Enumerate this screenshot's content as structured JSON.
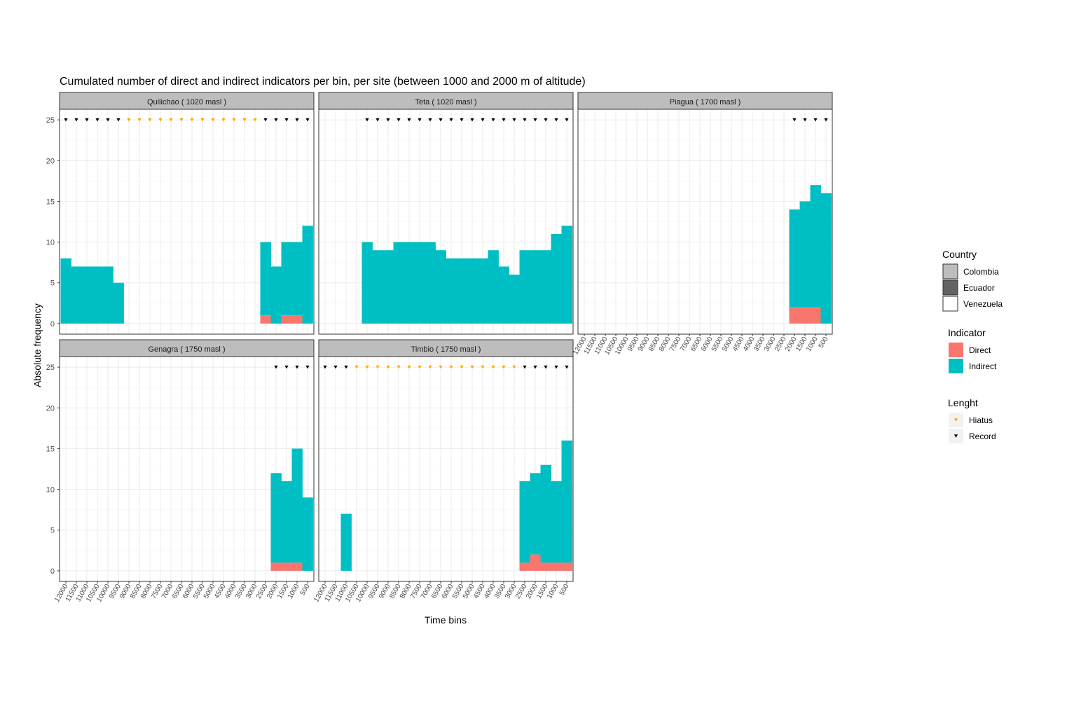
{
  "chart_data": {
    "type": "bar",
    "title": "Cumulated number of direct and indirect indicators per bin, per site (between 1000 and 2000 m of altitude)",
    "xlabel": "Time bins",
    "ylabel": "Absolute frequency",
    "ylim": [
      -1.3,
      26.3
    ],
    "yticks": [
      "0",
      "5",
      "10",
      "15",
      "20",
      "25"
    ],
    "categories": [
      "12000",
      "11500",
      "11000",
      "10500",
      "10000",
      "9500",
      "9000",
      "8500",
      "8000",
      "7500",
      "7000",
      "6500",
      "6000",
      "5500",
      "5000",
      "4500",
      "4000",
      "3500",
      "3000",
      "2500",
      "2000",
      "1500",
      "1000",
      "500"
    ],
    "grid": true,
    "legend_position": "right",
    "marker_level": 25,
    "colors": {
      "Direct": "#F8766D",
      "Indirect": "#00BFC4",
      "Hiatus": "#FFA500",
      "Record": "#000000",
      "strip": "#BDBDBD",
      "grid_major": "#EBEBEB",
      "grid_minor": "#F5F5F5"
    },
    "panels": [
      {
        "label": "Quilichao ( 1020 masl )",
        "country": "Colombia",
        "show_x_ticks": false,
        "direct": [
          0,
          0,
          0,
          0,
          0,
          0,
          0,
          0,
          0,
          0,
          0,
          0,
          0,
          0,
          0,
          0,
          0,
          0,
          0,
          1,
          0,
          1,
          1,
          0
        ],
        "indirect": [
          8,
          7,
          7,
          7,
          7,
          5,
          0,
          0,
          0,
          0,
          0,
          0,
          0,
          0,
          0,
          0,
          0,
          0,
          0,
          9,
          7,
          9,
          9,
          12
        ],
        "hiatus": [
          "9000",
          "8500",
          "8000",
          "7500",
          "7000",
          "6500",
          "6000",
          "5500",
          "5000",
          "4500",
          "4000",
          "3500",
          "3000"
        ],
        "record": [
          "12000",
          "11500",
          "11000",
          "10500",
          "10000",
          "9500",
          "2500",
          "2000",
          "1500",
          "1000",
          "500"
        ]
      },
      {
        "label": "Teta ( 1020 masl )",
        "country": "Colombia",
        "show_x_ticks": false,
        "direct": [
          0,
          0,
          0,
          0,
          0,
          0,
          0,
          0,
          0,
          0,
          0,
          0,
          0,
          0,
          0,
          0,
          0,
          0,
          0,
          0,
          0,
          0,
          0,
          0
        ],
        "indirect": [
          0,
          0,
          0,
          0,
          10,
          9,
          9,
          10,
          10,
          10,
          10,
          9,
          8,
          8,
          8,
          8,
          9,
          7,
          6,
          9,
          9,
          9,
          11,
          12
        ],
        "hiatus": [],
        "record": [
          "10000",
          "9500",
          "9000",
          "8500",
          "8000",
          "7500",
          "7000",
          "6500",
          "6000",
          "5500",
          "5000",
          "4500",
          "4000",
          "3500",
          "3000",
          "2500",
          "2000",
          "1500",
          "1000",
          "500"
        ]
      },
      {
        "label": "Piagua ( 1700 masl )",
        "country": "Colombia",
        "show_x_ticks": true,
        "direct": [
          0,
          0,
          0,
          0,
          0,
          0,
          0,
          0,
          0,
          0,
          0,
          0,
          0,
          0,
          0,
          0,
          0,
          0,
          0,
          0,
          2,
          2,
          2,
          0
        ],
        "indirect": [
          0,
          0,
          0,
          0,
          0,
          0,
          0,
          0,
          0,
          0,
          0,
          0,
          0,
          0,
          0,
          0,
          0,
          0,
          0,
          0,
          12,
          13,
          15,
          16
        ],
        "hiatus": [],
        "record": [
          "2000",
          "1500",
          "1000",
          "500"
        ]
      },
      {
        "label": "Genagra ( 1750 masl )",
        "country": "Colombia",
        "show_x_ticks": true,
        "direct": [
          0,
          0,
          0,
          0,
          0,
          0,
          0,
          0,
          0,
          0,
          0,
          0,
          0,
          0,
          0,
          0,
          0,
          0,
          0,
          0,
          1,
          1,
          1,
          0
        ],
        "indirect": [
          0,
          0,
          0,
          0,
          0,
          0,
          0,
          0,
          0,
          0,
          0,
          0,
          0,
          0,
          0,
          0,
          0,
          0,
          0,
          0,
          11,
          10,
          14,
          9
        ],
        "hiatus": [],
        "record": [
          "2000",
          "1500",
          "1000",
          "500"
        ]
      },
      {
        "label": "Timbio ( 1750 masl )",
        "country": "Colombia",
        "show_x_ticks": true,
        "direct": [
          0,
          0,
          0,
          0,
          0,
          0,
          0,
          0,
          0,
          0,
          0,
          0,
          0,
          0,
          0,
          0,
          0,
          0,
          0,
          1,
          2,
          1,
          1,
          1
        ],
        "indirect": [
          0,
          0,
          7,
          0,
          0,
          0,
          0,
          0,
          0,
          0,
          0,
          0,
          0,
          0,
          0,
          0,
          0,
          0,
          0,
          10,
          10,
          12,
          10,
          15
        ],
        "hiatus": [
          "10500",
          "10000",
          "9500",
          "9000",
          "8500",
          "8000",
          "7500",
          "7000",
          "6500",
          "6000",
          "5500",
          "5000",
          "4500",
          "4000",
          "3500",
          "3000"
        ],
        "record": [
          "12000",
          "11500",
          "11000",
          "2500",
          "2000",
          "1500",
          "1000",
          "500"
        ]
      }
    ],
    "legends": [
      {
        "title": "Country",
        "items": [
          {
            "label": "Colombia",
            "fill": "#BDBDBD"
          },
          {
            "label": "Ecuador",
            "fill": "#636363"
          },
          {
            "label": "Venezuela",
            "fill": "#FFFFFF"
          }
        ]
      },
      {
        "title": "Indicator",
        "items": [
          {
            "label": "Direct",
            "fill": "#F8766D"
          },
          {
            "label": "Indirect",
            "fill": "#00BFC4"
          }
        ]
      },
      {
        "title": "Lenght",
        "items": [
          {
            "label": "Hiatus",
            "marker": "#FFA500"
          },
          {
            "label": "Record",
            "marker": "#000000"
          }
        ]
      }
    ]
  }
}
